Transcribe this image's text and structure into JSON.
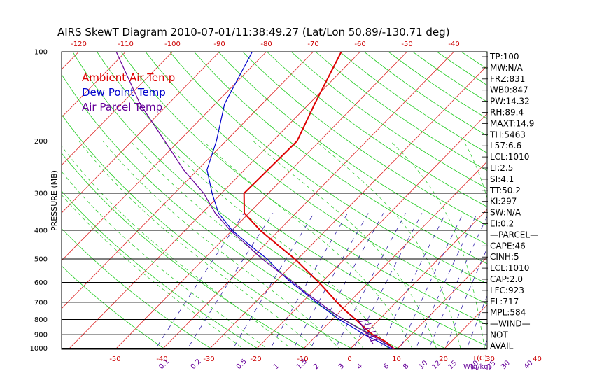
{
  "chart_data": {
    "type": "line",
    "title": "AIRS SkewT Diagram 2010-07-01/11:38:49.27 (Lat/Lon 50.89/-130.71 deg)",
    "ylabel": "PRESSURE (MB)",
    "xlabel_right": "T(C)",
    "mix_unit_label": "W(g/kg)",
    "pressure_ticks": [
      100,
      200,
      300,
      400,
      500,
      600,
      700,
      800,
      900,
      1000
    ],
    "pressure_range": [
      100,
      1050
    ],
    "temp_ticks_bottom": [
      -50,
      -40,
      -30,
      -20,
      -10,
      0,
      10,
      20,
      30,
      40
    ],
    "temp_ticks_top": [
      -120,
      -110,
      -100,
      -90,
      -80,
      -70,
      -60,
      -50,
      -40
    ],
    "mixing_ratio_labels": [
      "0.1",
      "0.2",
      "0.5",
      "1",
      "1.5",
      "2",
      "3",
      "4",
      "6",
      "8",
      "10",
      "12",
      "15",
      "20",
      "25",
      "30",
      "40"
    ],
    "legend": [
      {
        "label": "Ambient Air Temp",
        "color": "#dd0000"
      },
      {
        "label": "Dew Point Temp",
        "color": "#0000cc"
      },
      {
        "label": "Air Parcel Temp",
        "color": "#660099"
      }
    ],
    "series": [
      {
        "name": "Ambient Air Temp",
        "color": "#dd0000",
        "points": [
          [
            1013,
            9.8
          ],
          [
            950,
            6.0
          ],
          [
            900,
            1.8
          ],
          [
            850,
            -1.6
          ],
          [
            800,
            -5.0
          ],
          [
            750,
            -8.8
          ],
          [
            700,
            -12.6
          ],
          [
            650,
            -16.4
          ],
          [
            600,
            -20.6
          ],
          [
            550,
            -25.4
          ],
          [
            500,
            -30.6
          ],
          [
            450,
            -37.0
          ],
          [
            400,
            -44.0
          ],
          [
            350,
            -51.0
          ],
          [
            300,
            -55.2
          ],
          [
            250,
            -55.0
          ],
          [
            200,
            -54.8
          ],
          [
            150,
            -58.8
          ],
          [
            100,
            -64.0
          ]
        ]
      },
      {
        "name": "Dew Point Temp",
        "color": "#0000cc",
        "points": [
          [
            1013,
            9.4
          ],
          [
            950,
            4.5
          ],
          [
            900,
            0.0
          ],
          [
            850,
            -4.0
          ],
          [
            800,
            -8.5
          ],
          [
            750,
            -12.6
          ],
          [
            700,
            -17.0
          ],
          [
            650,
            -21.5
          ],
          [
            600,
            -26.5
          ],
          [
            550,
            -31.5
          ],
          [
            500,
            -36.5
          ],
          [
            450,
            -43.0
          ],
          [
            400,
            -50.0
          ],
          [
            350,
            -56.5
          ],
          [
            300,
            -62.0
          ],
          [
            250,
            -68.0
          ],
          [
            200,
            -72.0
          ],
          [
            150,
            -78.0
          ],
          [
            100,
            -83.0
          ]
        ]
      },
      {
        "name": "Air Parcel Temp",
        "color": "#660099",
        "points": [
          [
            1013,
            9.8
          ],
          [
            950,
            5.4
          ],
          [
            900,
            1.2
          ],
          [
            850,
            -3.1
          ],
          [
            800,
            -7.6
          ],
          [
            750,
            -12.0
          ],
          [
            700,
            -16.4
          ],
          [
            650,
            -21.2
          ],
          [
            600,
            -26.0
          ],
          [
            550,
            -31.6
          ],
          [
            500,
            -37.6
          ],
          [
            450,
            -43.6
          ],
          [
            400,
            -50.4
          ],
          [
            350,
            -57.2
          ],
          [
            300,
            -63.8
          ],
          [
            250,
            -73.0
          ],
          [
            200,
            -83.0
          ],
          [
            150,
            -96.0
          ],
          [
            100,
            -112.0
          ]
        ]
      }
    ],
    "wind_barb": {
      "pressure": 860,
      "label": "wind"
    }
  },
  "indices": [
    "TP:100",
    "MW:N/A",
    "FRZ:831",
    "WB0:847",
    "PW:14.32",
    "RH:89.4",
    "MAXT:14.9",
    "TH:5463",
    "L57:6.6",
    "LCL:1010",
    "LI:2.5",
    "SI:4.1",
    "TT:50.2",
    "KI:297",
    "SW:N/A",
    "EI:0.2",
    "—PARCEL—",
    "CAPE:46",
    "CINH:5",
    "LCL:1010",
    "CAP:2.0",
    "LFC:923",
    "EL:717",
    "MPL:584",
    "—WIND—",
    "NOT",
    "AVAIL"
  ]
}
